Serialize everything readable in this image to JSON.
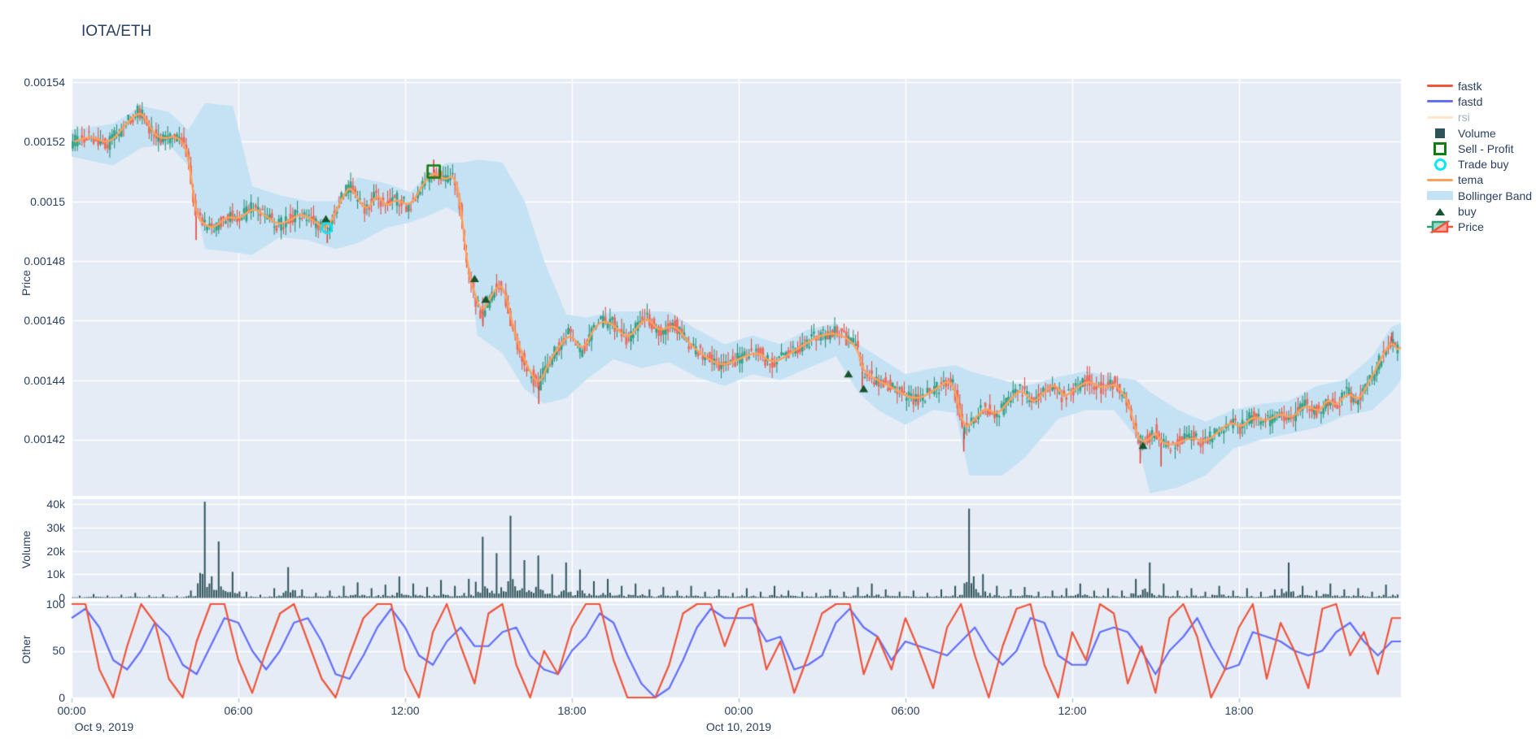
{
  "title": "IOTA/ETH",
  "axes": {
    "price": {
      "title": "Price",
      "ticks": [
        "0.00154",
        "0.00152",
        "0.0015",
        "0.00148",
        "0.00146",
        "0.00144",
        "0.00142"
      ]
    },
    "volume": {
      "title": "Volume",
      "ticks": [
        "40k",
        "30k",
        "20k",
        "10k",
        "0"
      ]
    },
    "other": {
      "title": "Other",
      "ticks": [
        "100",
        "50",
        "0"
      ]
    },
    "x": {
      "ticks": [
        "00:00",
        "06:00",
        "12:00",
        "18:00",
        "00:00",
        "06:00",
        "12:00",
        "18:00"
      ],
      "date_labels": [
        "Oct 9, 2019",
        "Oct 10, 2019"
      ]
    }
  },
  "legend": {
    "items": [
      {
        "label": "fastk",
        "type": "line",
        "color": "#ef553b",
        "dimmed": false
      },
      {
        "label": "fastd",
        "type": "line",
        "color": "#636efa",
        "dimmed": false
      },
      {
        "label": "rsi",
        "type": "line",
        "color": "#ffd9a3",
        "dimmed": true
      },
      {
        "label": "Volume",
        "type": "square",
        "color": "#30535a",
        "dimmed": false
      },
      {
        "label": "Sell - Profit",
        "type": "open-square",
        "color": "#0f7d0f",
        "dimmed": false
      },
      {
        "label": "Trade buy",
        "type": "open-circle",
        "color": "#00e8f8",
        "dimmed": false
      },
      {
        "label": "tema",
        "type": "line",
        "color": "#ffa15a",
        "dimmed": false
      },
      {
        "label": "Bollinger Band",
        "type": "band",
        "color": "#c4e2f4",
        "dimmed": false
      },
      {
        "label": "buy",
        "type": "triangle",
        "color": "#17542e",
        "dimmed": false
      },
      {
        "label": "Price",
        "type": "candle",
        "color": "#2f9e7d",
        "dimmed": false
      }
    ]
  },
  "colors": {
    "plot_bg": "#e5ecf6",
    "grid": "#ffffff",
    "text": "#2a3f5f",
    "candle_up_fill": "#35a185",
    "candle_up_line": "#1f8a6b",
    "candle_dn_fill": "#ef6a5a",
    "candle_dn_line": "#de463a",
    "volume_bar": "#30535a",
    "tema": "#ffa15a",
    "band": "#c4e2f4",
    "fastk": "#ef553b",
    "fastd": "#636efa",
    "sell_marker": "#0f7d0f",
    "trade_buy_marker": "#00e8f8",
    "buy_marker": "#17542e"
  },
  "chart_data": {
    "type": "financial-multi-panel",
    "pair": "IOTA/ETH",
    "x_axis": {
      "unit": "hours from Oct 9 2019 00:00",
      "range": [
        0,
        47.83
      ],
      "tick_hours": [
        0,
        6,
        12,
        18,
        24,
        30,
        36,
        42
      ]
    },
    "price_axis_range_micro": [
      1400,
      1541
    ],
    "price_scale": 1e-06,
    "panels": [
      "Price",
      "Volume",
      "Other"
    ],
    "candle_interval_hours": 0.0833,
    "close_keypoints_micro": [
      [
        0.1,
        1520
      ],
      [
        0.7,
        1522
      ],
      [
        1.35,
        1519
      ],
      [
        1.96,
        1526
      ],
      [
        2.43,
        1530
      ],
      [
        2.66,
        1528
      ],
      [
        3.0,
        1522
      ],
      [
        3.4,
        1521
      ],
      [
        3.7,
        1522
      ],
      [
        4.0,
        1520
      ],
      [
        4.21,
        1515
      ],
      [
        4.48,
        1495
      ],
      [
        4.8,
        1492
      ],
      [
        5.12,
        1491
      ],
      [
        5.6,
        1495
      ],
      [
        6.06,
        1494
      ],
      [
        6.53,
        1498
      ],
      [
        7.0,
        1495
      ],
      [
        7.46,
        1492
      ],
      [
        7.93,
        1494
      ],
      [
        8.25,
        1496
      ],
      [
        8.81,
        1493
      ],
      [
        9.19,
        1490
      ],
      [
        9.83,
        1503
      ],
      [
        10.07,
        1505
      ],
      [
        10.6,
        1496
      ],
      [
        11.0,
        1503
      ],
      [
        11.32,
        1498
      ],
      [
        11.7,
        1501
      ],
      [
        12.18,
        1498
      ],
      [
        12.65,
        1506
      ],
      [
        13.03,
        1510
      ],
      [
        13.43,
        1507
      ],
      [
        13.76,
        1509
      ],
      [
        13.99,
        1500
      ],
      [
        14.23,
        1479
      ],
      [
        14.46,
        1470
      ],
      [
        14.77,
        1462
      ],
      [
        15.24,
        1471
      ],
      [
        15.55,
        1472
      ],
      [
        15.95,
        1455
      ],
      [
        16.42,
        1444
      ],
      [
        16.81,
        1438
      ],
      [
        17.12,
        1445
      ],
      [
        17.5,
        1451
      ],
      [
        17.97,
        1456
      ],
      [
        18.38,
        1449
      ],
      [
        18.93,
        1460
      ],
      [
        19.49,
        1459
      ],
      [
        20.02,
        1453
      ],
      [
        20.66,
        1462
      ],
      [
        21.13,
        1456
      ],
      [
        21.69,
        1459
      ],
      [
        22.24,
        1452
      ],
      [
        22.77,
        1448
      ],
      [
        23.32,
        1445
      ],
      [
        23.79,
        1446
      ],
      [
        24.7,
        1450
      ],
      [
        25.2,
        1445
      ],
      [
        26.2,
        1451
      ],
      [
        26.9,
        1455
      ],
      [
        27.6,
        1456
      ],
      [
        28.3,
        1451
      ],
      [
        28.45,
        1443
      ],
      [
        29.0,
        1440
      ],
      [
        29.6,
        1437
      ],
      [
        30.4,
        1433
      ],
      [
        31.1,
        1437
      ],
      [
        31.7,
        1441
      ],
      [
        32.1,
        1423
      ],
      [
        32.5,
        1427
      ],
      [
        32.9,
        1431
      ],
      [
        33.3,
        1428
      ],
      [
        33.8,
        1434
      ],
      [
        34.2,
        1437
      ],
      [
        34.6,
        1432
      ],
      [
        35.0,
        1436
      ],
      [
        35.4,
        1439
      ],
      [
        35.7,
        1434
      ],
      [
        36.1,
        1437
      ],
      [
        36.6,
        1440
      ],
      [
        37.1,
        1437
      ],
      [
        37.5,
        1439
      ],
      [
        37.9,
        1435
      ],
      [
        38.1,
        1430
      ],
      [
        38.4,
        1419
      ],
      [
        38.8,
        1420
      ],
      [
        39.0,
        1423
      ],
      [
        39.2,
        1419
      ],
      [
        39.6,
        1418
      ],
      [
        40.3,
        1421
      ],
      [
        40.8,
        1419
      ],
      [
        41.3,
        1423
      ],
      [
        41.7,
        1426
      ],
      [
        42.1,
        1424
      ],
      [
        42.5,
        1428
      ],
      [
        43.0,
        1426
      ],
      [
        43.5,
        1429
      ],
      [
        43.9,
        1427
      ],
      [
        44.4,
        1432
      ],
      [
        44.9,
        1429
      ],
      [
        45.2,
        1434
      ],
      [
        45.5,
        1431
      ],
      [
        45.9,
        1436
      ],
      [
        46.3,
        1433
      ],
      [
        46.6,
        1438
      ],
      [
        46.9,
        1443
      ],
      [
        47.2,
        1449
      ],
      [
        47.5,
        1453
      ],
      [
        47.7,
        1450
      ],
      [
        47.83,
        1451
      ]
    ],
    "bollinger_keypoints_micro": [
      [
        0,
        1524,
        1515
      ],
      [
        1.5,
        1526,
        1512
      ],
      [
        2.5,
        1532,
        1518
      ],
      [
        3.5,
        1530,
        1519
      ],
      [
        4.2,
        1524,
        1512
      ],
      [
        4.8,
        1533,
        1484
      ],
      [
        5.8,
        1532,
        1483
      ],
      [
        6.5,
        1505,
        1482
      ],
      [
        7.5,
        1502,
        1488
      ],
      [
        8.5,
        1500,
        1487
      ],
      [
        9.5,
        1500,
        1484
      ],
      [
        10.3,
        1508,
        1486
      ],
      [
        11.3,
        1506,
        1491
      ],
      [
        12.2,
        1503,
        1493
      ],
      [
        12.8,
        1509,
        1495
      ],
      [
        13.5,
        1513,
        1498
      ],
      [
        14.1,
        1513,
        1495
      ],
      [
        14.6,
        1514,
        1455
      ],
      [
        15.5,
        1513,
        1449
      ],
      [
        16.3,
        1500,
        1437
      ],
      [
        17.0,
        1480,
        1432
      ],
      [
        17.8,
        1462,
        1434
      ],
      [
        18.5,
        1461,
        1440
      ],
      [
        19.5,
        1463,
        1447
      ],
      [
        20.5,
        1463,
        1444
      ],
      [
        21.5,
        1463,
        1446
      ],
      [
        22.5,
        1457,
        1441
      ],
      [
        23.5,
        1452,
        1438
      ],
      [
        24.5,
        1455,
        1442
      ],
      [
        25.5,
        1452,
        1440
      ],
      [
        26.5,
        1457,
        1444
      ],
      [
        27.5,
        1459,
        1448
      ],
      [
        28.3,
        1452,
        1436
      ],
      [
        29.0,
        1448,
        1430
      ],
      [
        30.0,
        1442,
        1425
      ],
      [
        31.0,
        1444,
        1430
      ],
      [
        31.8,
        1445,
        1429
      ],
      [
        32.3,
        1443,
        1408
      ],
      [
        33.5,
        1440,
        1408
      ],
      [
        34.3,
        1438,
        1414
      ],
      [
        35.5,
        1441,
        1427
      ],
      [
        36.5,
        1443,
        1430
      ],
      [
        37.5,
        1441,
        1430
      ],
      [
        38.3,
        1440,
        1421
      ],
      [
        38.8,
        1436,
        1402
      ],
      [
        39.8,
        1430,
        1404
      ],
      [
        40.8,
        1426,
        1408
      ],
      [
        41.8,
        1430,
        1417
      ],
      [
        42.8,
        1432,
        1420
      ],
      [
        43.8,
        1433,
        1422
      ],
      [
        44.8,
        1438,
        1424
      ],
      [
        45.8,
        1440,
        1428
      ],
      [
        46.8,
        1448,
        1430
      ],
      [
        47.5,
        1458,
        1436
      ],
      [
        47.83,
        1459,
        1440
      ]
    ],
    "special_wicks_micro": [
      [
        4.48,
        "low",
        1487
      ],
      [
        9.2,
        "low",
        1486
      ],
      [
        13.03,
        "high",
        1514
      ],
      [
        14.8,
        "low",
        1458
      ],
      [
        16.81,
        "low",
        1432
      ],
      [
        28.45,
        "low",
        1437
      ],
      [
        32.1,
        "low",
        1416
      ],
      [
        38.45,
        "low",
        1412
      ],
      [
        39.2,
        "low",
        1411
      ],
      [
        47.5,
        "high",
        1456
      ]
    ],
    "volume_k_per_half_hour": [
      0.8,
      1.5,
      0.9,
      1.2,
      2.0,
      1.0,
      1.4,
      0.8,
      3.0,
      41,
      24,
      11,
      2.5,
      1.2,
      4.0,
      13,
      3.5,
      2.0,
      3.0,
      5.0,
      6.5,
      4.0,
      5.5,
      9.0,
      6.0,
      4.5,
      7.5,
      5.0,
      8.0,
      26,
      19,
      35,
      16,
      18,
      10,
      15,
      12,
      7,
      8,
      5,
      6,
      3.5,
      4.5,
      3,
      5,
      2.5,
      3.5,
      2,
      4,
      2.5,
      5,
      3,
      2.5,
      2,
      3.5,
      2.5,
      4.5,
      6,
      3.5,
      2.5,
      3,
      2,
      3.5,
      5,
      38,
      10,
      5,
      3.5,
      4.5,
      2.5,
      3,
      4,
      6,
      3,
      4,
      3,
      8,
      15,
      6,
      3,
      4,
      2.5,
      5,
      3,
      4,
      2.5,
      3.5,
      15,
      5,
      3,
      6,
      3.5,
      4,
      2.5,
      5.5,
      7
    ],
    "fastk_per_half_hour": [
      100,
      100,
      30,
      0,
      55,
      100,
      80,
      20,
      0,
      60,
      100,
      100,
      40,
      5,
      50,
      90,
      100,
      60,
      20,
      0,
      45,
      85,
      100,
      100,
      30,
      0,
      70,
      100,
      55,
      15,
      90,
      100,
      35,
      0,
      50,
      25,
      75,
      100,
      100,
      40,
      0,
      0,
      0,
      35,
      90,
      100,
      100,
      55,
      95,
      100,
      30,
      60,
      5,
      45,
      90,
      100,
      100,
      25,
      65,
      30,
      85,
      50,
      10,
      75,
      100,
      45,
      0,
      55,
      95,
      100,
      35,
      0,
      70,
      40,
      100,
      90,
      15,
      55,
      5,
      85,
      100,
      65,
      0,
      30,
      75,
      100,
      20,
      80,
      50,
      10,
      95,
      100,
      45,
      70,
      25,
      85
    ],
    "fastd_per_half_hour": [
      85,
      95,
      75,
      40,
      30,
      50,
      80,
      65,
      35,
      25,
      55,
      85,
      80,
      50,
      30,
      50,
      80,
      85,
      60,
      25,
      20,
      45,
      75,
      95,
      75,
      45,
      35,
      60,
      75,
      55,
      55,
      70,
      75,
      45,
      30,
      25,
      50,
      65,
      90,
      80,
      45,
      15,
      0,
      10,
      40,
      75,
      95,
      85,
      85,
      85,
      60,
      65,
      30,
      35,
      45,
      80,
      95,
      75,
      65,
      40,
      60,
      55,
      50,
      45,
      60,
      75,
      50,
      35,
      50,
      85,
      80,
      45,
      35,
      35,
      70,
      75,
      70,
      50,
      25,
      50,
      65,
      85,
      55,
      30,
      35,
      70,
      65,
      60,
      50,
      45,
      50,
      70,
      80,
      60,
      45,
      60
    ],
    "rsi_visible": false,
    "markers": {
      "sell_profit_micro": [
        [
          13.03,
          1510
        ]
      ],
      "trade_buy_micro": [
        [
          9.19,
          1491
        ]
      ],
      "buy_micro": [
        [
          9.15,
          1494
        ],
        [
          14.5,
          1474
        ],
        [
          14.9,
          1467
        ],
        [
          27.95,
          1442
        ],
        [
          28.5,
          1437
        ],
        [
          38.55,
          1418
        ]
      ]
    }
  }
}
